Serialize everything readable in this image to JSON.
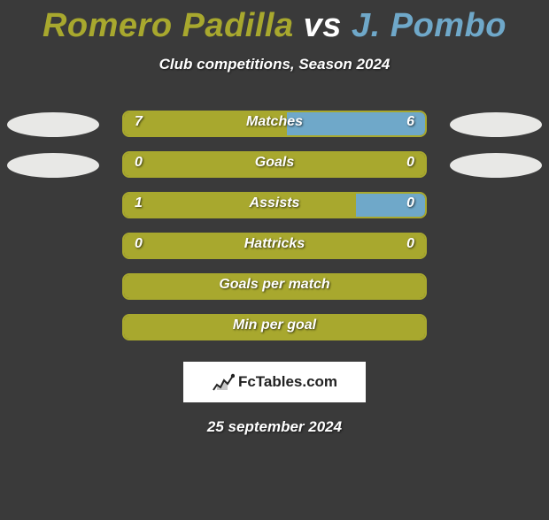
{
  "title": {
    "player1": "Romero Padilla",
    "vs": "vs",
    "player2": "J. Pombo",
    "color_player1": "#a8a82e",
    "color_vs": "#ffffff",
    "color_player2": "#6fa8c9"
  },
  "subtitle": "Club competitions, Season 2024",
  "colors": {
    "left_fill": "#a8a82e",
    "right_fill": "#6fa8c9",
    "border": "#a8a82e",
    "ellipse": "#e8e8e6",
    "background": "#3a3a3a"
  },
  "stats": [
    {
      "label": "Matches",
      "left_value": "7",
      "right_value": "6",
      "left_pct": 54,
      "show_ellipses": true
    },
    {
      "label": "Goals",
      "left_value": "0",
      "right_value": "0",
      "left_pct": 100,
      "show_ellipses": true
    },
    {
      "label": "Assists",
      "left_value": "1",
      "right_value": "0",
      "left_pct": 77,
      "show_ellipses": false
    },
    {
      "label": "Hattricks",
      "left_value": "0",
      "right_value": "0",
      "left_pct": 100,
      "show_ellipses": false
    },
    {
      "label": "Goals per match",
      "left_value": "",
      "right_value": "",
      "left_pct": 100,
      "show_ellipses": false
    },
    {
      "label": "Min per goal",
      "left_value": "",
      "right_value": "",
      "left_pct": 100,
      "show_ellipses": false
    }
  ],
  "logo": {
    "text": "FcTables.com"
  },
  "date": "25 september 2024"
}
